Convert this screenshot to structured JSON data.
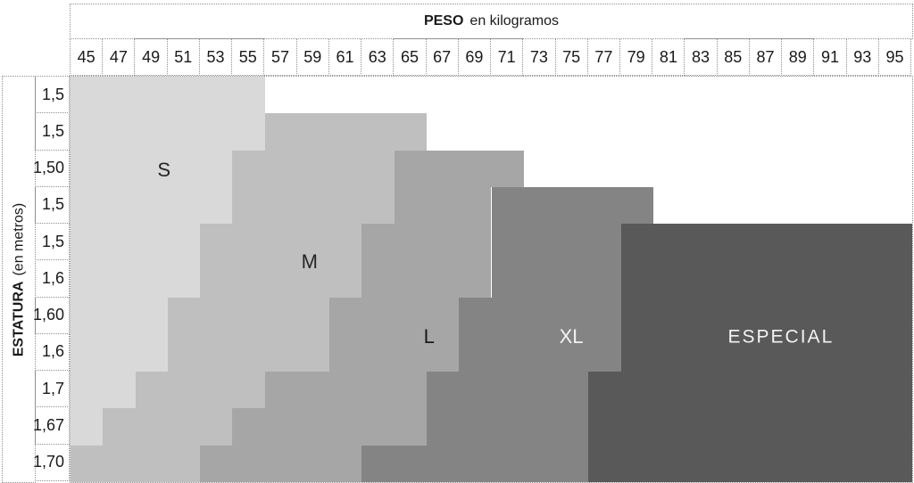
{
  "chart_data": {
    "type": "heatmap",
    "title": "PESO en kilogramos",
    "x_axis": {
      "label_bold": "PESO",
      "label_units": "en kilogramos",
      "categories": [
        "45",
        "47",
        "49",
        "51",
        "53",
        "55",
        "57",
        "59",
        "61",
        "63",
        "65",
        "67",
        "69",
        "71",
        "73",
        "75",
        "77",
        "79",
        "81",
        "83",
        "85",
        "87",
        "89",
        "91",
        "93",
        "95"
      ]
    },
    "y_axis": {
      "label_bold": "ESTATURA",
      "label_units": "(en metros)",
      "categories": [
        "1,5",
        "1,5",
        "1,50",
        "1,5",
        "1,5",
        "1,6",
        "1,60",
        "1,6",
        "1,7",
        "1,67",
        "1,70"
      ]
    },
    "sizes": {
      "S": {
        "fill": "#d9d9d9",
        "label": "#262626"
      },
      "M": {
        "fill": "#bfbfbf",
        "label": "#262626"
      },
      "L": {
        "fill": "#a6a6a6",
        "label": "#1a1a1a"
      },
      "XL": {
        "fill": "#848484",
        "label": "#f2f2f2"
      },
      "ESPECIAL": {
        "fill": "#595959",
        "label": "#f2f2f2"
      }
    },
    "rows": [
      {
        "height": "1,5",
        "segments": [
          {
            "size": "S",
            "from": 45,
            "to": 55
          }
        ]
      },
      {
        "height": "1,5",
        "segments": [
          {
            "size": "S",
            "from": 45,
            "to": 55
          },
          {
            "size": "M",
            "from": 57,
            "to": 65
          }
        ]
      },
      {
        "height": "1,50",
        "segments": [
          {
            "size": "S",
            "from": 45,
            "to": 53
          },
          {
            "size": "M",
            "from": 55,
            "to": 63
          },
          {
            "size": "L",
            "from": 65,
            "to": 71
          }
        ]
      },
      {
        "height": "1,5",
        "segments": [
          {
            "size": "S",
            "from": 45,
            "to": 53
          },
          {
            "size": "M",
            "from": 55,
            "to": 63
          },
          {
            "size": "L",
            "from": 65,
            "to": 69
          },
          {
            "size": "XL",
            "from": 71,
            "to": 79
          }
        ]
      },
      {
        "height": "1,5",
        "segments": [
          {
            "size": "S",
            "from": 45,
            "to": 51
          },
          {
            "size": "M",
            "from": 53,
            "to": 61
          },
          {
            "size": "L",
            "from": 63,
            "to": 69
          },
          {
            "size": "XL",
            "from": 71,
            "to": 77
          },
          {
            "size": "ESPECIAL",
            "from": 79,
            "to": 95
          }
        ]
      },
      {
        "height": "1,6",
        "segments": [
          {
            "size": "S",
            "from": 45,
            "to": 51
          },
          {
            "size": "M",
            "from": 53,
            "to": 61
          },
          {
            "size": "L",
            "from": 63,
            "to": 69
          },
          {
            "size": "XL",
            "from": 71,
            "to": 77
          },
          {
            "size": "ESPECIAL",
            "from": 79,
            "to": 95
          }
        ]
      },
      {
        "height": "1,60",
        "segments": [
          {
            "size": "S",
            "from": 45,
            "to": 49
          },
          {
            "size": "M",
            "from": 51,
            "to": 59
          },
          {
            "size": "L",
            "from": 61,
            "to": 67
          },
          {
            "size": "XL",
            "from": 69,
            "to": 77
          },
          {
            "size": "ESPECIAL",
            "from": 79,
            "to": 95
          }
        ]
      },
      {
        "height": "1,6",
        "segments": [
          {
            "size": "S",
            "from": 45,
            "to": 49
          },
          {
            "size": "M",
            "from": 51,
            "to": 59
          },
          {
            "size": "L",
            "from": 61,
            "to": 67
          },
          {
            "size": "XL",
            "from": 69,
            "to": 77
          },
          {
            "size": "ESPECIAL",
            "from": 79,
            "to": 95
          }
        ]
      },
      {
        "height": "1,7",
        "segments": [
          {
            "size": "S",
            "from": 45,
            "to": 47
          },
          {
            "size": "M",
            "from": 49,
            "to": 55
          },
          {
            "size": "L",
            "from": 57,
            "to": 65
          },
          {
            "size": "XL",
            "from": 67,
            "to": 75
          },
          {
            "size": "ESPECIAL",
            "from": 77,
            "to": 95
          }
        ]
      },
      {
        "height": "1,67",
        "segments": [
          {
            "size": "S",
            "from": 45,
            "to": 45
          },
          {
            "size": "M",
            "from": 47,
            "to": 53
          },
          {
            "size": "L",
            "from": 55,
            "to": 65
          },
          {
            "size": "XL",
            "from": 67,
            "to": 75
          },
          {
            "size": "ESPECIAL",
            "from": 77,
            "to": 95
          }
        ]
      },
      {
        "height": "1,70",
        "segments": [
          {
            "size": "M",
            "from": 45,
            "to": 51
          },
          {
            "size": "L",
            "from": 53,
            "to": 61
          },
          {
            "size": "XL",
            "from": 63,
            "to": 75
          },
          {
            "size": "ESPECIAL",
            "from": 77,
            "to": 95
          }
        ]
      }
    ],
    "size_labels": [
      {
        "size": "S",
        "text": "S",
        "x_pct": 11.1,
        "y_pct": 23.0,
        "font_px": 22
      },
      {
        "size": "M",
        "text": "M",
        "x_pct": 28.4,
        "y_pct": 45.8,
        "font_px": 22
      },
      {
        "size": "L",
        "text": "L",
        "x_pct": 42.6,
        "y_pct": 64.2,
        "font_px": 22
      },
      {
        "size": "XL",
        "text": "XL",
        "x_pct": 59.5,
        "y_pct": 64.2,
        "font_px": 22
      },
      {
        "size": "ESPECIAL",
        "text": "ESPECIAL",
        "x_pct": 84.4,
        "y_pct": 64.2,
        "font_px": 21
      }
    ],
    "layout": {
      "grid_border_color": "#8f8f8f",
      "background": "#ffffff",
      "n_cols": 26,
      "n_rows": 11,
      "weight_start": 45,
      "weight_step": 2
    }
  }
}
